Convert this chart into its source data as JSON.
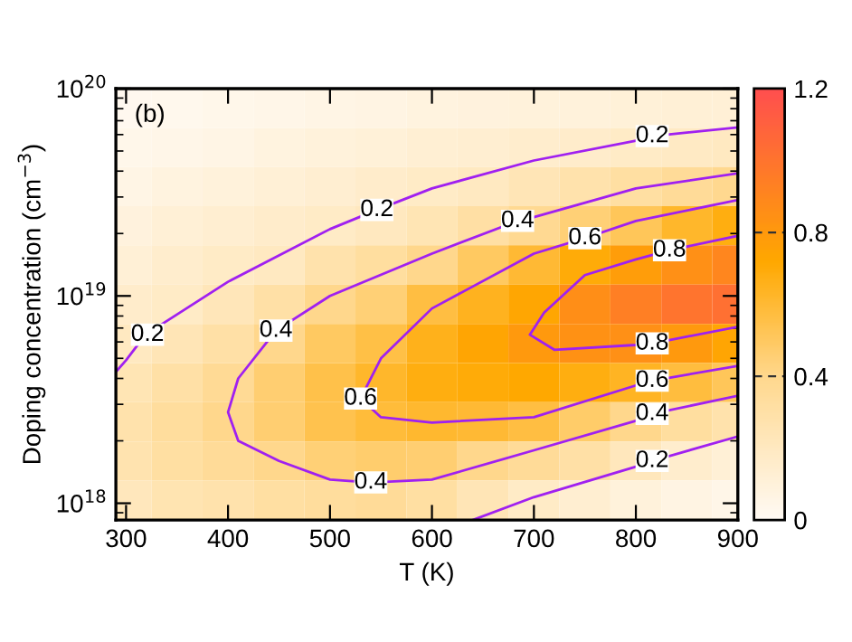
{
  "chart_data": {
    "type": "heatmap",
    "xlabel": "T (K)",
    "ylabel": "Doping concentration (cm$^{−3}$)",
    "x": [
      300,
      350,
      400,
      450,
      500,
      550,
      600,
      650,
      700,
      750,
      800,
      850,
      900
    ],
    "y": [
      8.04e+19,
      5.2e+19,
      3.37e+19,
      2.18e+19,
      1.41e+19,
      9.1e+18,
      5.9e+18,
      3.82e+18,
      2.47e+18,
      1.6e+18,
      1.04e+18
    ],
    "cells": [
      [
        0.02,
        0.03,
        0.04,
        0.05,
        0.06,
        0.07,
        0.08,
        0.09,
        0.1,
        0.1,
        0.11,
        0.12,
        0.12
      ],
      [
        0.04,
        0.05,
        0.06,
        0.08,
        0.1,
        0.11,
        0.13,
        0.14,
        0.15,
        0.16,
        0.18,
        0.19,
        0.2
      ],
      [
        0.06,
        0.08,
        0.1,
        0.12,
        0.14,
        0.16,
        0.18,
        0.2,
        0.24,
        0.28,
        0.32,
        0.36,
        0.39
      ],
      [
        0.09,
        0.12,
        0.14,
        0.16,
        0.18,
        0.21,
        0.25,
        0.31,
        0.38,
        0.45,
        0.52,
        0.62,
        0.68
      ],
      [
        0.12,
        0.15,
        0.18,
        0.2,
        0.28,
        0.33,
        0.4,
        0.5,
        0.6,
        0.7,
        0.78,
        0.85,
        0.9
      ],
      [
        0.16,
        0.18,
        0.23,
        0.3,
        0.4,
        0.45,
        0.57,
        0.65,
        0.73,
        0.86,
        0.94,
        1.0,
        1.02
      ],
      [
        0.2,
        0.24,
        0.3,
        0.4,
        0.5,
        0.56,
        0.66,
        0.74,
        0.8,
        0.84,
        0.85,
        0.8,
        0.74
      ],
      [
        0.25,
        0.3,
        0.37,
        0.46,
        0.55,
        0.62,
        0.68,
        0.7,
        0.72,
        0.68,
        0.64,
        0.58,
        0.52
      ],
      [
        0.28,
        0.34,
        0.4,
        0.46,
        0.54,
        0.59,
        0.61,
        0.6,
        0.57,
        0.48,
        0.4,
        0.33,
        0.28
      ],
      [
        0.27,
        0.32,
        0.36,
        0.4,
        0.45,
        0.47,
        0.46,
        0.4,
        0.36,
        0.3,
        0.22,
        0.15,
        0.12
      ],
      [
        0.22,
        0.26,
        0.28,
        0.32,
        0.34,
        0.36,
        0.32,
        0.24,
        0.18,
        0.14,
        0.1,
        0.07,
        0.05
      ]
    ],
    "clim": [
      0,
      1.2
    ],
    "cticks": [
      0,
      0.4,
      0.8,
      1.2
    ],
    "xlim": [
      290,
      900
    ],
    "xticks": [
      300,
      400,
      500,
      600,
      700,
      800,
      900
    ],
    "ylim": [
      8.3e+17,
      1e+20
    ],
    "yticks": [
      {
        "value": 1e+18,
        "label": "10$^{18}$"
      },
      {
        "value": 1e+19,
        "label": "10$^{19}$"
      },
      {
        "value": 1e+20,
        "label": "10$^{20}$"
      }
    ],
    "log": "y",
    "grid": false,
    "legend": false,
    "series": [
      {
        "type": "line",
        "color": "#a020f0",
        "x": [
          290,
          300,
          319,
          400,
          500,
          546,
          600,
          700,
          800,
          816,
          900
        ],
        "values": [
          4.3e+18,
          4.9e+18,
          6.5e+18,
          1.17e+19,
          2.1e+19,
          2.6e+19,
          3.3e+19,
          4.5e+19,
          5.6e+19,
          5.9e+19,
          6.5e+19
        ]
      },
      {
        "type": "line",
        "color": "#a020f0",
        "x": [
          900,
          800,
          700,
          684,
          600,
          500,
          447,
          410,
          400,
          410,
          450,
          500,
          540,
          600,
          700,
          800,
          816,
          900
        ],
        "values": [
          3.9e+19,
          3.3e+19,
          2.4e+19,
          2.3e+19,
          1.6e+19,
          1e+19,
          6.8e+18,
          4e+18,
          2.75e+18,
          2e+18,
          1.6e+18,
          1.3e+18,
          1.26e+18,
          1.3e+18,
          1.8e+18,
          2.5e+18,
          2.7e+18,
          3.3e+18
        ]
      },
      {
        "type": "line",
        "color": "#a020f0",
        "x": [
          900,
          800,
          750,
          700,
          600,
          550,
          530,
          550,
          600,
          700,
          800,
          816,
          900
        ],
        "values": [
          2.9e+19,
          2.3e+19,
          1.9e+19,
          1.6e+19,
          8.7e+18,
          5e+18,
          3.2e+18,
          2.6e+18,
          2.45e+18,
          2.6e+18,
          3.7e+18,
          3.9e+18,
          4.6e+18
        ]
      },
      {
        "type": "line",
        "color": "#a020f0",
        "x": [
          900,
          833,
          800,
          750,
          710,
          696,
          720,
          800,
          816,
          900
        ],
        "values": [
          1.95e+19,
          1.66e+19,
          1.5e+19,
          1.26e+19,
          8.3e+18,
          6.5e+18,
          5.5e+18,
          5.8e+18,
          5.9e+18,
          7.1e+18
        ]
      },
      {
        "type": "line",
        "color": "#a020f0",
        "x": [
          640,
          700,
          800,
          816,
          900
        ],
        "values": [
          8.3e+17,
          1.07e+18,
          1.5e+18,
          1.6e+18,
          2.1e+18
        ]
      }
    ],
    "annotations": [
      "(b)",
      {
        "text": "0.2",
        "x": 321,
        "y": 6.5e+18
      },
      {
        "text": "0.2",
        "x": 546,
        "y": 2.6e+19
      },
      {
        "text": "0.2",
        "x": 816,
        "y": 5.9e+19
      },
      {
        "text": "0.4",
        "x": 447,
        "y": 6.8e+18
      },
      {
        "text": "0.4",
        "x": 684,
        "y": 2.3e+19
      },
      {
        "text": "0.4",
        "x": 540,
        "y": 1.26e+18
      },
      {
        "text": "0.4",
        "x": 816,
        "y": 2.7e+18
      },
      {
        "text": "0.6",
        "x": 530,
        "y": 3.2e+18
      },
      {
        "text": "0.6",
        "x": 750,
        "y": 1.9e+19
      },
      {
        "text": "0.6",
        "x": 816,
        "y": 3.9e+18
      },
      {
        "text": "0.8",
        "x": 833,
        "y": 1.66e+19
      },
      {
        "text": "0.8",
        "x": 816,
        "y": 5.9e+18
      },
      {
        "text": "0.2",
        "x": 816,
        "y": 1.6e+18
      }
    ]
  }
}
